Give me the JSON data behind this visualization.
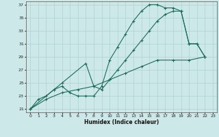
{
  "xlabel": "Humidex (Indice chaleur)",
  "xlim": [
    -0.5,
    23.5
  ],
  "ylim": [
    20.5,
    37.5
  ],
  "yticks": [
    21,
    23,
    25,
    27,
    29,
    31,
    33,
    35,
    37
  ],
  "xticks": [
    0,
    1,
    2,
    3,
    4,
    5,
    6,
    7,
    8,
    9,
    10,
    11,
    12,
    13,
    14,
    15,
    16,
    17,
    18,
    19,
    20,
    21,
    22,
    23
  ],
  "bg_color": "#cce8e8",
  "grid_color": "#b0d0d0",
  "line_color": "#1a6b5a",
  "line1_x": [
    0,
    1,
    2,
    3,
    4,
    5,
    6,
    7,
    8,
    9,
    10,
    11,
    12,
    13,
    14,
    15,
    16,
    17,
    18,
    19,
    20,
    21,
    22
  ],
  "line1_y": [
    21,
    22.5,
    23,
    24,
    24.5,
    23.5,
    23,
    23,
    23,
    24.5,
    28.5,
    30.5,
    32.5,
    34.5,
    36,
    37,
    37,
    36.5,
    36.5,
    36,
    31,
    31,
    29
  ],
  "line2_x": [
    0,
    3,
    4,
    7,
    8,
    9,
    10,
    11,
    12,
    13,
    14,
    15,
    16,
    17,
    18,
    19,
    20,
    21,
    22
  ],
  "line2_y": [
    21,
    24,
    25,
    28,
    24.5,
    24,
    25.5,
    27,
    28.5,
    30,
    31.5,
    33,
    34.5,
    35.5,
    36,
    36,
    31,
    31,
    29
  ],
  "line3_x": [
    0,
    2,
    4,
    6,
    8,
    10,
    12,
    14,
    16,
    18,
    20,
    22
  ],
  "line3_y": [
    21,
    22.5,
    23.5,
    24,
    24.5,
    25.5,
    26.5,
    27.5,
    28.5,
    28.5,
    28.5,
    29
  ]
}
